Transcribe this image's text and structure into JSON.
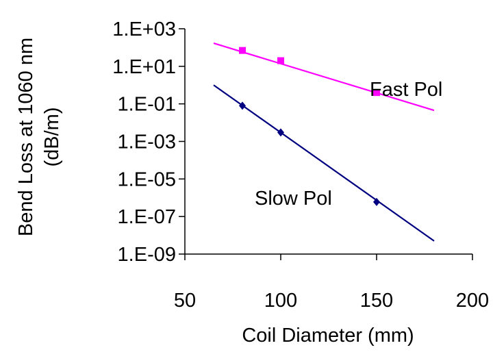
{
  "chart_data": {
    "type": "scatter",
    "xlabel": "Coil Diameter (mm)",
    "ylabel_lines": [
      "Bend Loss at 1060 nm",
      "(dB/m)"
    ],
    "xlim": [
      50,
      200
    ],
    "ylim": [
      1e-09,
      1000
    ],
    "y_scale": "log",
    "x_ticks": [
      {
        "value": 50,
        "label": "50"
      },
      {
        "value": 100,
        "label": "100"
      },
      {
        "value": 150,
        "label": "150"
      },
      {
        "value": 200,
        "label": "200"
      }
    ],
    "y_ticks": [
      {
        "value": 1000,
        "label": "1.E+03"
      },
      {
        "value": 10,
        "label": "1.E+01"
      },
      {
        "value": 0.1,
        "label": "1.E-01"
      },
      {
        "value": 0.001,
        "label": "1.E-03"
      },
      {
        "value": 1e-05,
        "label": "1.E-05"
      },
      {
        "value": 1e-07,
        "label": "1.E-07"
      },
      {
        "value": 1e-09,
        "label": "1.E-09"
      }
    ],
    "grid": false,
    "legend": "none",
    "series": [
      {
        "name": "Fast Pol",
        "color": "#FF00FF",
        "marker": "square",
        "x": [
          80,
          100,
          150
        ],
        "y": [
          70,
          20,
          0.4
        ],
        "trend": {
          "x": [
            65,
            180
          ],
          "y": [
            170,
            0.045
          ]
        }
      },
      {
        "name": "Slow Pol",
        "color": "#000080",
        "marker": "diamond",
        "x": [
          80,
          100,
          150
        ],
        "y": [
          0.08,
          0.003,
          6e-07
        ],
        "trend": {
          "x": [
            65,
            180
          ],
          "y": [
            1.0,
            5e-09
          ]
        }
      }
    ]
  }
}
